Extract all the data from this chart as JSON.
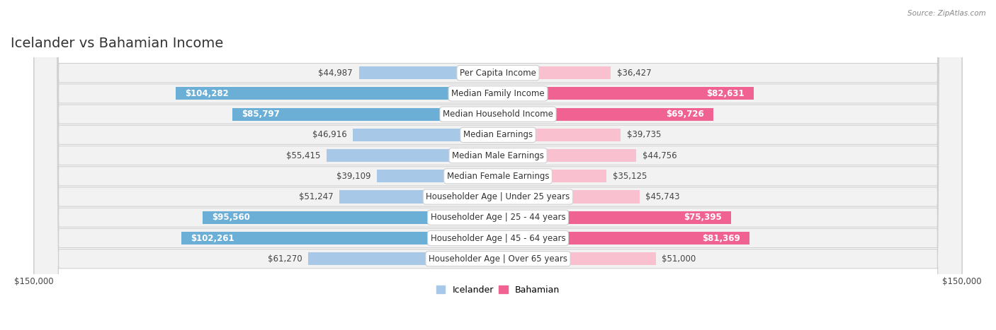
{
  "title": "Icelander vs Bahamian Income",
  "source": "Source: ZipAtlas.com",
  "categories": [
    "Per Capita Income",
    "Median Family Income",
    "Median Household Income",
    "Median Earnings",
    "Median Male Earnings",
    "Median Female Earnings",
    "Householder Age | Under 25 years",
    "Householder Age | 25 - 44 years",
    "Householder Age | 45 - 64 years",
    "Householder Age | Over 65 years"
  ],
  "icelander_values": [
    44987,
    104282,
    85797,
    46916,
    55415,
    39109,
    51247,
    95560,
    102261,
    61270
  ],
  "bahamian_values": [
    36427,
    82631,
    69726,
    39735,
    44756,
    35125,
    45743,
    75395,
    81369,
    51000
  ],
  "icelander_labels": [
    "$44,987",
    "$104,282",
    "$85,797",
    "$46,916",
    "$55,415",
    "$39,109",
    "$51,247",
    "$95,560",
    "$102,261",
    "$61,270"
  ],
  "bahamian_labels": [
    "$36,427",
    "$82,631",
    "$69,726",
    "$39,735",
    "$44,756",
    "$35,125",
    "$45,743",
    "$75,395",
    "$81,369",
    "$51,000"
  ],
  "icelander_color_light": "#A8C8E8",
  "icelander_color_dark": "#6BAED6",
  "bahamian_color_light": "#F9C0D0",
  "bahamian_color_dark": "#F06292",
  "icelander_label_inside_threshold": 75000,
  "bahamian_label_inside_threshold": 60000,
  "max_value": 150000,
  "title_fontsize": 14,
  "label_fontsize": 8.5,
  "axis_label_fontsize": 8.5,
  "legend_fontsize": 9
}
